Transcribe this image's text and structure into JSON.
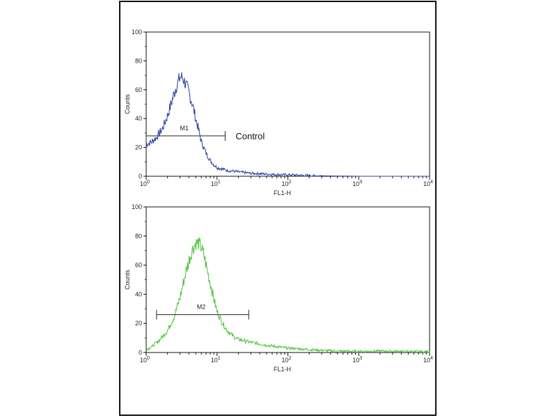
{
  "colors": {
    "control_line": "#2b3fa0",
    "sample_line": "#4cc23a",
    "axis": "#111111"
  },
  "chart_data": [
    {
      "type": "line",
      "xlabel": "FL1-H",
      "ylabel": "Counts",
      "xscale": "log",
      "xlim": [
        1,
        10000
      ],
      "ylim": [
        0,
        100
      ],
      "yticks": [
        "0",
        "20",
        "40",
        "60",
        "80",
        "100"
      ],
      "xticks": [
        {
          "base": "10",
          "exp": "0"
        },
        {
          "base": "10",
          "exp": "1"
        },
        {
          "base": "10",
          "exp": "2"
        },
        {
          "base": "10",
          "exp": "3"
        },
        {
          "base": "10",
          "exp": "4"
        }
      ],
      "series": [
        {
          "color": "#2b3fa0",
          "x": [
            1,
            1.2,
            1.4,
            1.7,
            2,
            2.3,
            2.6,
            2.9,
            3.1,
            3.3,
            3.6,
            4,
            4.5,
            5,
            5.5,
            6,
            7,
            8,
            9,
            10,
            12,
            14,
            17,
            20,
            25,
            30,
            40,
            50,
            70,
            100,
            150,
            200,
            300,
            1000,
            10000
          ],
          "y": [
            22,
            24,
            27,
            33,
            42,
            52,
            61,
            67,
            69,
            68,
            64,
            58,
            50,
            40,
            32,
            24,
            16,
            11,
            8,
            6,
            5,
            4,
            3.5,
            3,
            2.5,
            2,
            1.8,
            1.5,
            1.2,
            1,
            0.7,
            0.5,
            0.3,
            0,
            0
          ]
        }
      ],
      "marker": {
        "label": "M1",
        "x_start": 1,
        "x_end": 13,
        "y": 28
      },
      "annotation": "Control"
    },
    {
      "type": "line",
      "xlabel": "FL1-H",
      "ylabel": "Counts",
      "xscale": "log",
      "xlim": [
        1,
        10000
      ],
      "ylim": [
        0,
        100
      ],
      "yticks": [
        "0",
        "20",
        "40",
        "60",
        "80",
        "100"
      ],
      "xticks": [
        {
          "base": "10",
          "exp": "0"
        },
        {
          "base": "10",
          "exp": "1"
        },
        {
          "base": "10",
          "exp": "2"
        },
        {
          "base": "10",
          "exp": "3"
        },
        {
          "base": "10",
          "exp": "4"
        }
      ],
      "series": [
        {
          "color": "#4cc23a",
          "x": [
            1,
            1.2,
            1.5,
            2,
            2.5,
            3,
            3.5,
            4,
            4.5,
            5,
            5.5,
            6,
            6.5,
            7,
            8,
            9,
            10,
            12,
            14,
            17,
            20,
            25,
            30,
            40,
            50,
            70,
            100,
            150,
            200,
            300,
            500,
            1000,
            2000,
            5000,
            10000
          ],
          "y": [
            2,
            4,
            8,
            15,
            25,
            38,
            52,
            63,
            71,
            75,
            75,
            72,
            67,
            60,
            48,
            37,
            28,
            20,
            15,
            11,
            9,
            8,
            7,
            6,
            5,
            4,
            3,
            2.5,
            2,
            1.5,
            1,
            0.8,
            1,
            0.8,
            0.5
          ]
        }
      ],
      "marker": {
        "label": "M2",
        "x_start": 1.4,
        "x_end": 28,
        "y": 26
      }
    }
  ]
}
